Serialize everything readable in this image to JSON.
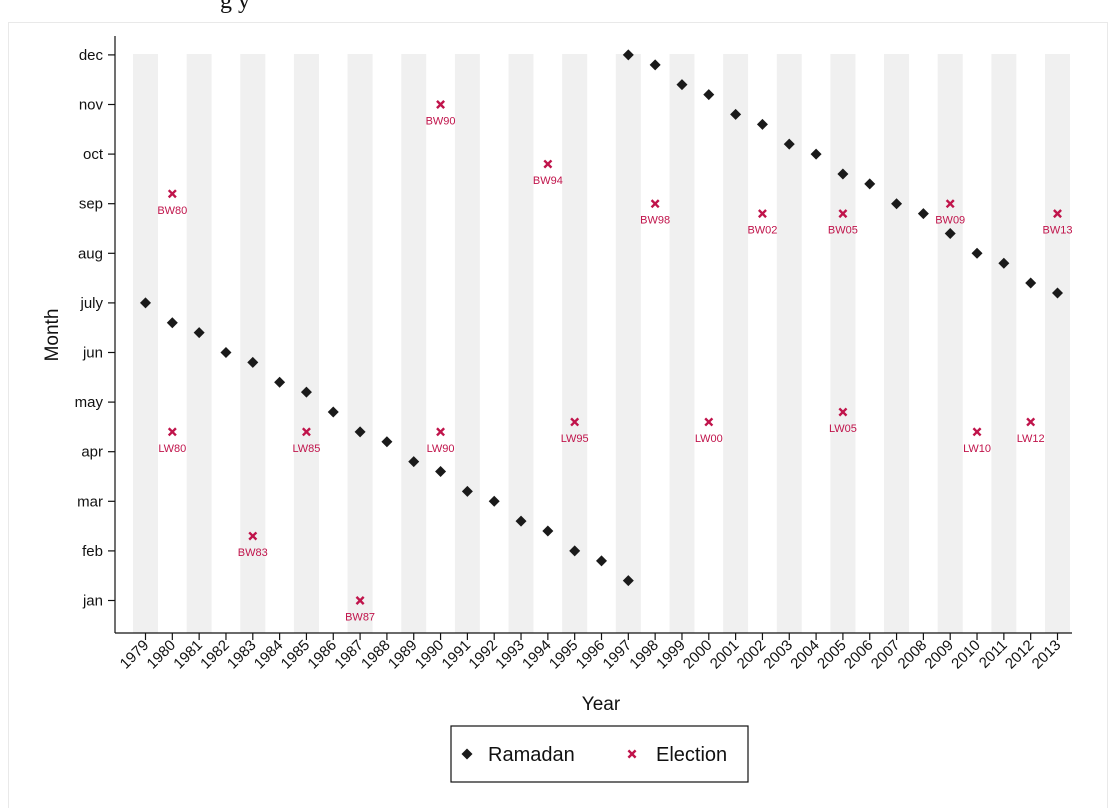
{
  "header": {
    "partial_title": "g                                    y"
  },
  "chart_data": {
    "type": "scatter",
    "xlabel": "Year",
    "ylabel": "Month",
    "x_categories": [
      "1979",
      "1980",
      "1981",
      "1982",
      "1983",
      "1984",
      "1985",
      "1986",
      "1987",
      "1988",
      "1989",
      "1990",
      "1991",
      "1992",
      "1993",
      "1994",
      "1995",
      "1996",
      "1997",
      "1998",
      "1999",
      "2000",
      "2001",
      "2002",
      "2003",
      "2004",
      "2005",
      "2006",
      "2007",
      "2008",
      "2009",
      "2010",
      "2011",
      "2012",
      "2013"
    ],
    "y_ticks": [
      {
        "label": "jan",
        "value": 1
      },
      {
        "label": "feb",
        "value": 2
      },
      {
        "label": "mar",
        "value": 3
      },
      {
        "label": "apr",
        "value": 4
      },
      {
        "label": "may",
        "value": 5
      },
      {
        "label": "jun",
        "value": 6
      },
      {
        "label": "july",
        "value": 7
      },
      {
        "label": "aug",
        "value": 8
      },
      {
        "label": "sep",
        "value": 9
      },
      {
        "label": "oct",
        "value": 10
      },
      {
        "label": "nov",
        "value": 11
      },
      {
        "label": "dec",
        "value": 12
      }
    ],
    "ylim": [
      0.4,
      12.5
    ],
    "shaded_bands": true,
    "legend_position": "bottom-center",
    "series": [
      {
        "name": "Ramadan",
        "marker": "diamond",
        "color": "#1a1a1a",
        "points": [
          {
            "x": "1979",
            "y": 7.0
          },
          {
            "x": "1980",
            "y": 6.6
          },
          {
            "x": "1981",
            "y": 6.4
          },
          {
            "x": "1982",
            "y": 6.0
          },
          {
            "x": "1983",
            "y": 5.8
          },
          {
            "x": "1984",
            "y": 5.4
          },
          {
            "x": "1985",
            "y": 5.2
          },
          {
            "x": "1986",
            "y": 4.8
          },
          {
            "x": "1987",
            "y": 4.4
          },
          {
            "x": "1988",
            "y": 4.2
          },
          {
            "x": "1989",
            "y": 3.8
          },
          {
            "x": "1990",
            "y": 3.6
          },
          {
            "x": "1991",
            "y": 3.2
          },
          {
            "x": "1992",
            "y": 3.0
          },
          {
            "x": "1993",
            "y": 2.6
          },
          {
            "x": "1994",
            "y": 2.4
          },
          {
            "x": "1995",
            "y": 2.0
          },
          {
            "x": "1996",
            "y": 1.8
          },
          {
            "x": "1997",
            "y": 1.4
          },
          {
            "x": "1997",
            "y": 12.0
          },
          {
            "x": "1998",
            "y": 11.8
          },
          {
            "x": "1999",
            "y": 11.4
          },
          {
            "x": "2000",
            "y": 11.2
          },
          {
            "x": "2001",
            "y": 10.8
          },
          {
            "x": "2002",
            "y": 10.6
          },
          {
            "x": "2003",
            "y": 10.2
          },
          {
            "x": "2004",
            "y": 10.0
          },
          {
            "x": "2005",
            "y": 9.6
          },
          {
            "x": "2006",
            "y": 9.4
          },
          {
            "x": "2007",
            "y": 9.0
          },
          {
            "x": "2008",
            "y": 8.8
          },
          {
            "x": "2009",
            "y": 8.4
          },
          {
            "x": "2010",
            "y": 8.0
          },
          {
            "x": "2011",
            "y": 7.8
          },
          {
            "x": "2012",
            "y": 7.4
          },
          {
            "x": "2013",
            "y": 7.2
          }
        ]
      },
      {
        "name": "Election",
        "marker": "x",
        "color": "#c0144b",
        "points": [
          {
            "x": "1980",
            "y": 9.2,
            "label": "BW80"
          },
          {
            "x": "1990",
            "y": 11.0,
            "label": "BW90"
          },
          {
            "x": "1994",
            "y": 9.8,
            "label": "BW94"
          },
          {
            "x": "1998",
            "y": 9.0,
            "label": "BW98"
          },
          {
            "x": "2002",
            "y": 8.8,
            "label": "BW02"
          },
          {
            "x": "2005",
            "y": 8.8,
            "label": "BW05"
          },
          {
            "x": "2009",
            "y": 9.0,
            "label": "BW09"
          },
          {
            "x": "2013",
            "y": 8.8,
            "label": "BW13"
          },
          {
            "x": "1983",
            "y": 2.3,
            "label": "BW83"
          },
          {
            "x": "1987",
            "y": 1.0,
            "label": "BW87"
          },
          {
            "x": "1980",
            "y": 4.4,
            "label": "LW80"
          },
          {
            "x": "1985",
            "y": 4.4,
            "label": "LW85"
          },
          {
            "x": "1990",
            "y": 4.4,
            "label": "LW90"
          },
          {
            "x": "1995",
            "y": 4.6,
            "label": "LW95"
          },
          {
            "x": "2000",
            "y": 4.6,
            "label": "LW00"
          },
          {
            "x": "2005",
            "y": 4.8,
            "label": "LW05"
          },
          {
            "x": "2010",
            "y": 4.4,
            "label": "LW10"
          },
          {
            "x": "2012",
            "y": 4.6,
            "label": "LW12"
          }
        ]
      }
    ]
  }
}
